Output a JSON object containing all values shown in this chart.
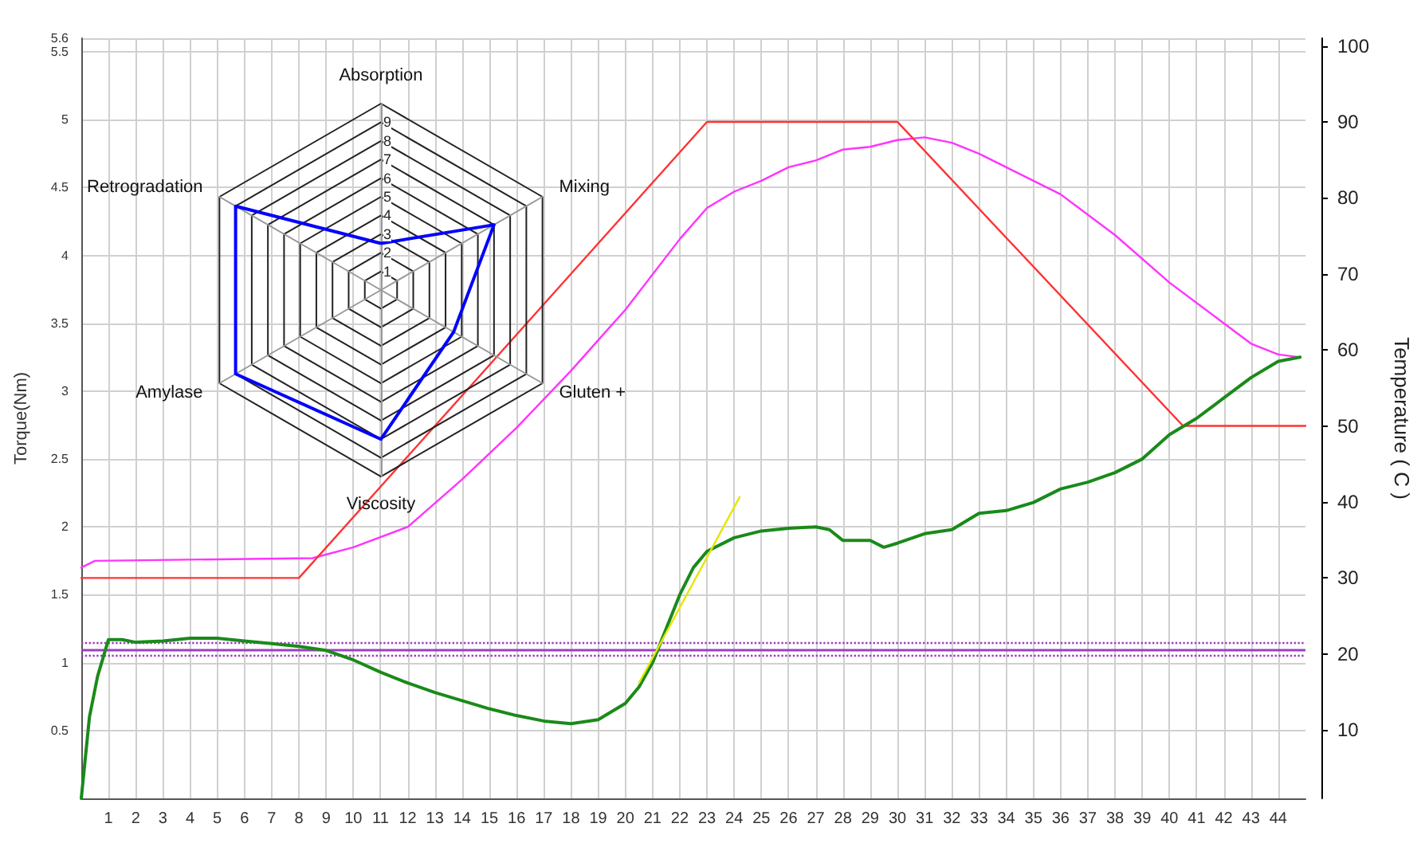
{
  "chart_data": [
    {
      "type": "line",
      "ylabel": "Torque(Nm)",
      "y2label": "Temperature ( C )",
      "xlim": [
        0,
        45
      ],
      "xticks": [
        1,
        2,
        3,
        4,
        5,
        6,
        7,
        8,
        9,
        10,
        11,
        12,
        13,
        14,
        15,
        16,
        17,
        18,
        19,
        20,
        21,
        22,
        23,
        24,
        25,
        26,
        27,
        28,
        29,
        30,
        31,
        32,
        33,
        34,
        35,
        36,
        37,
        38,
        39,
        40,
        41,
        42,
        43,
        44
      ],
      "ylim": [
        0,
        5.6
      ],
      "yticks": [
        0.5,
        1,
        1.5,
        2,
        2.5,
        3,
        3.5,
        4,
        4.5,
        5,
        5.5,
        5.6
      ],
      "y2lim": [
        1,
        101
      ],
      "y2ticks": [
        10,
        20,
        30,
        40,
        50,
        60,
        70,
        80,
        90,
        100
      ],
      "grid": true,
      "marker": "none",
      "line_style": "solid",
      "series": [
        {
          "color": "#ff33ff",
          "x": [
            0,
            0.5,
            8.5,
            10,
            12,
            14,
            16,
            18,
            20,
            22,
            23,
            24,
            25,
            26,
            27,
            28,
            29,
            30,
            31,
            32,
            33,
            34,
            35,
            36,
            38,
            40,
            42,
            43,
            44,
            44.8
          ],
          "values": [
            1.7,
            1.75,
            1.77,
            1.85,
            2.0,
            2.35,
            2.73,
            3.15,
            3.6,
            4.12,
            4.35,
            4.47,
            4.55,
            4.65,
            4.7,
            4.78,
            4.8,
            4.85,
            4.87,
            4.83,
            4.75,
            4.65,
            4.55,
            4.45,
            4.15,
            3.8,
            3.5,
            3.35,
            3.27,
            3.25
          ]
        },
        {
          "color": "#ff3333",
          "axis": "y2",
          "x": [
            0,
            8,
            23,
            30,
            40.5,
            45
          ],
          "values": [
            30,
            30,
            90,
            90,
            50,
            50
          ]
        },
        {
          "color": "#1a8a1a",
          "x": [
            0,
            0.3,
            0.6,
            1,
            1.5,
            2,
            3,
            4,
            5,
            6,
            7,
            8,
            9,
            10,
            11,
            12,
            13,
            14,
            15,
            16,
            17,
            18,
            19,
            20,
            20.5,
            21,
            21.5,
            22,
            22.5,
            23,
            24,
            25,
            26,
            27,
            27.5,
            28,
            29,
            29.5,
            30,
            31,
            32,
            33,
            34,
            35,
            36,
            37,
            38,
            39,
            40,
            41,
            42,
            43,
            44,
            44.8
          ],
          "values": [
            0,
            0.6,
            0.9,
            1.17,
            1.17,
            1.15,
            1.16,
            1.18,
            1.18,
            1.16,
            1.14,
            1.12,
            1.09,
            1.02,
            0.93,
            0.85,
            0.78,
            0.72,
            0.66,
            0.61,
            0.57,
            0.55,
            0.58,
            0.7,
            0.82,
            1.0,
            1.25,
            1.5,
            1.7,
            1.82,
            1.92,
            1.97,
            1.99,
            2.0,
            1.98,
            1.9,
            1.9,
            1.85,
            1.88,
            1.95,
            1.98,
            2.1,
            2.12,
            2.18,
            2.28,
            2.33,
            2.4,
            2.5,
            2.68,
            2.8,
            2.95,
            3.1,
            3.22,
            3.25
          ]
        },
        {
          "color": "#e6e600",
          "x": [
            20.5,
            24.2
          ],
          "values": [
            0.85,
            2.22
          ]
        }
      ],
      "ref_lines": [
        {
          "axis": "y",
          "value": 1.1,
          "color": "#9b3fbf",
          "line_style": "solid"
        },
        {
          "axis": "y",
          "value": 1.15,
          "color": "#9b3fbf",
          "line_style": "dotted"
        },
        {
          "axis": "y",
          "value": 1.05,
          "color": "#9b3fbf",
          "line_style": "dotted"
        }
      ]
    },
    {
      "type": "radar",
      "categories": [
        "Absorption",
        "Mixing",
        "Gluten +",
        "Viscosity",
        "Amylase",
        "Retrogradation"
      ],
      "ylim": [
        0,
        10
      ],
      "yticks": [
        1,
        2,
        3,
        4,
        5,
        6,
        7,
        8,
        9
      ],
      "series": [
        {
          "color": "#0000ff",
          "values": [
            2.5,
            7,
            4.5,
            8,
            9,
            9
          ]
        }
      ]
    }
  ]
}
